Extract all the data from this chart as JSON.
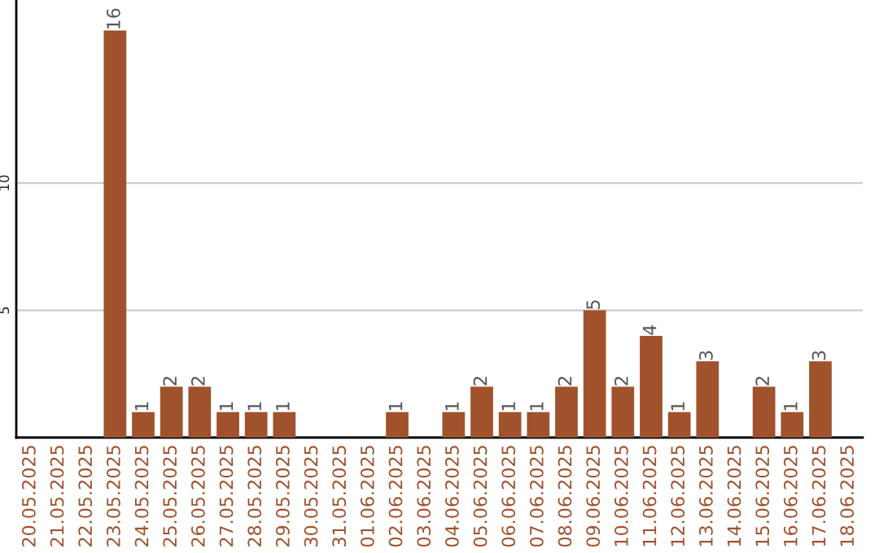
{
  "chart_data": {
    "type": "bar",
    "categories": [
      "20.05.2025",
      "21.05.2025",
      "22.05.2025",
      "23.05.2025",
      "24.05.2025",
      "25.05.2025",
      "26.05.2025",
      "27.05.2025",
      "28.05.2025",
      "29.05.2025",
      "30.05.2025",
      "31.05.2025",
      "01.06.2025",
      "02.06.2025",
      "03.06.2025",
      "04.06.2025",
      "05.06.2025",
      "06.06.2025",
      "07.06.2025",
      "08.06.2025",
      "09.06.2025",
      "10.06.2025",
      "11.06.2025",
      "12.06.2025",
      "13.06.2025",
      "14.06.2025",
      "15.06.2025",
      "16.06.2025",
      "17.06.2025",
      "18.06.2025"
    ],
    "values": [
      0,
      0,
      0,
      16,
      1,
      2,
      2,
      1,
      1,
      1,
      0,
      0,
      0,
      1,
      0,
      1,
      2,
      1,
      1,
      2,
      5,
      2,
      4,
      1,
      3,
      0,
      2,
      1,
      3,
      0
    ],
    "value_labels": [
      null,
      null,
      null,
      "16",
      "1",
      "2",
      "2",
      "1",
      "1",
      "1",
      null,
      null,
      null,
      "1",
      null,
      "1",
      "2",
      "1",
      "1",
      "2",
      "5",
      "2",
      "4",
      "1",
      "3",
      null,
      "2",
      "1",
      "3",
      null
    ],
    "color": "#a0522d",
    "ylim": [
      0,
      17.2
    ],
    "yticks": [
      {
        "value": 0,
        "label": null
      },
      5,
      10
    ],
    "grid": "y"
  }
}
